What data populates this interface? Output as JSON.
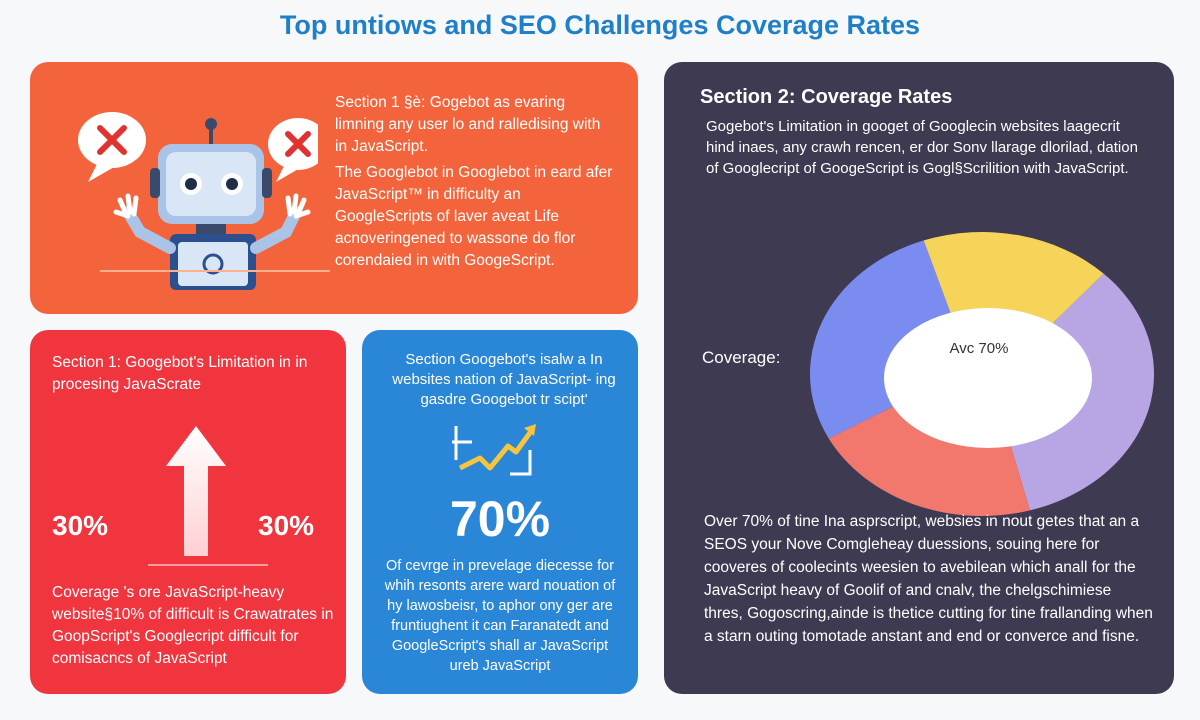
{
  "title": "Top untiows and SEO Challenges Coverage Rates",
  "colors": {
    "title": "#1f7fc9",
    "orange": "#f4643c",
    "red": "#f0353f",
    "blue": "#2a86d6",
    "dark": "#3d3a52",
    "donut_blue": "#7b8cf0",
    "donut_yellow": "#f6d45a",
    "donut_lavender": "#b7a6e3",
    "donut_salmon": "#f2776c"
  },
  "icons": [
    "robot-icon",
    "x-mark-icon",
    "up-arrow-icon",
    "trend-line-icon",
    "donut-chart"
  ],
  "top_left": {
    "heading": "Section 1 §è: Gogebot as evaring limning any user lo and ralledising with in JavaScript.",
    "body": "The Googlebot in Googlebot in eard afer JavaScript™ in difficulty an GoogleScripts of laver aveat Life acnoveringened to wassone do flor corendaied in with GoogeScript."
  },
  "bottom_left": {
    "heading": "Section 1: Googebot's Limitation in in procesing JavaScrate",
    "left_value": "30%",
    "right_value": "30%",
    "body": "Coverage 's ore JavaScript-heavy website§10% of difficult is Crawatrates in GoopScript's Googlecript difficult for comisacncs of JavaScript"
  },
  "bottom_middle": {
    "heading": "Section Googebot's isalw a In websites nation of JavaScript- ing gasdre Googebot tr scipt'",
    "value": "70%",
    "body": "Of cevrge in prevelage diecesse for whih resonts arere ward nouation of hy lawosbeisr, to aphor ony ger are fruntiughent it can Faranatedt and GoogleScript's shall ar JavaScript ureb JavaScript"
  },
  "right_panel": {
    "title": "Section 2: Coverage Rates",
    "intro": "Gogebot's Limitation in googet of Googlecin websites laagecrit hind inaes, any crawh rencen, er dor Sonv llarage dlorilad, dation of Googlecript of GoogeScript is Gogl§Scrilition with JavaScript.",
    "coverage_label": "Coverage:",
    "center_label": "Avc 70%",
    "body": "Over 70% of tine Ina asprscript, websies in nout getes that an a SEOS your Nove Comgleheay duessions, souing here for cooveres of coolecints weesien to avebilean which anall for the JavaScript heavy of Goolif of and cnalv, the chelgschimiese thres, Gogoscring,ainde is thetice cutting for tine frallanding when a starn outing tomotade anstant and end or converce and fisne."
  },
  "chart_data": {
    "type": "pie",
    "title": "",
    "categories": [
      "",
      "",
      "",
      ""
    ],
    "values": [
      27,
      18,
      33,
      22
    ],
    "colors": [
      "#7b8cf0",
      "#f6d45a",
      "#b7a6e3",
      "#f2776c"
    ],
    "center_text": "Avc 70%",
    "donut": true
  }
}
